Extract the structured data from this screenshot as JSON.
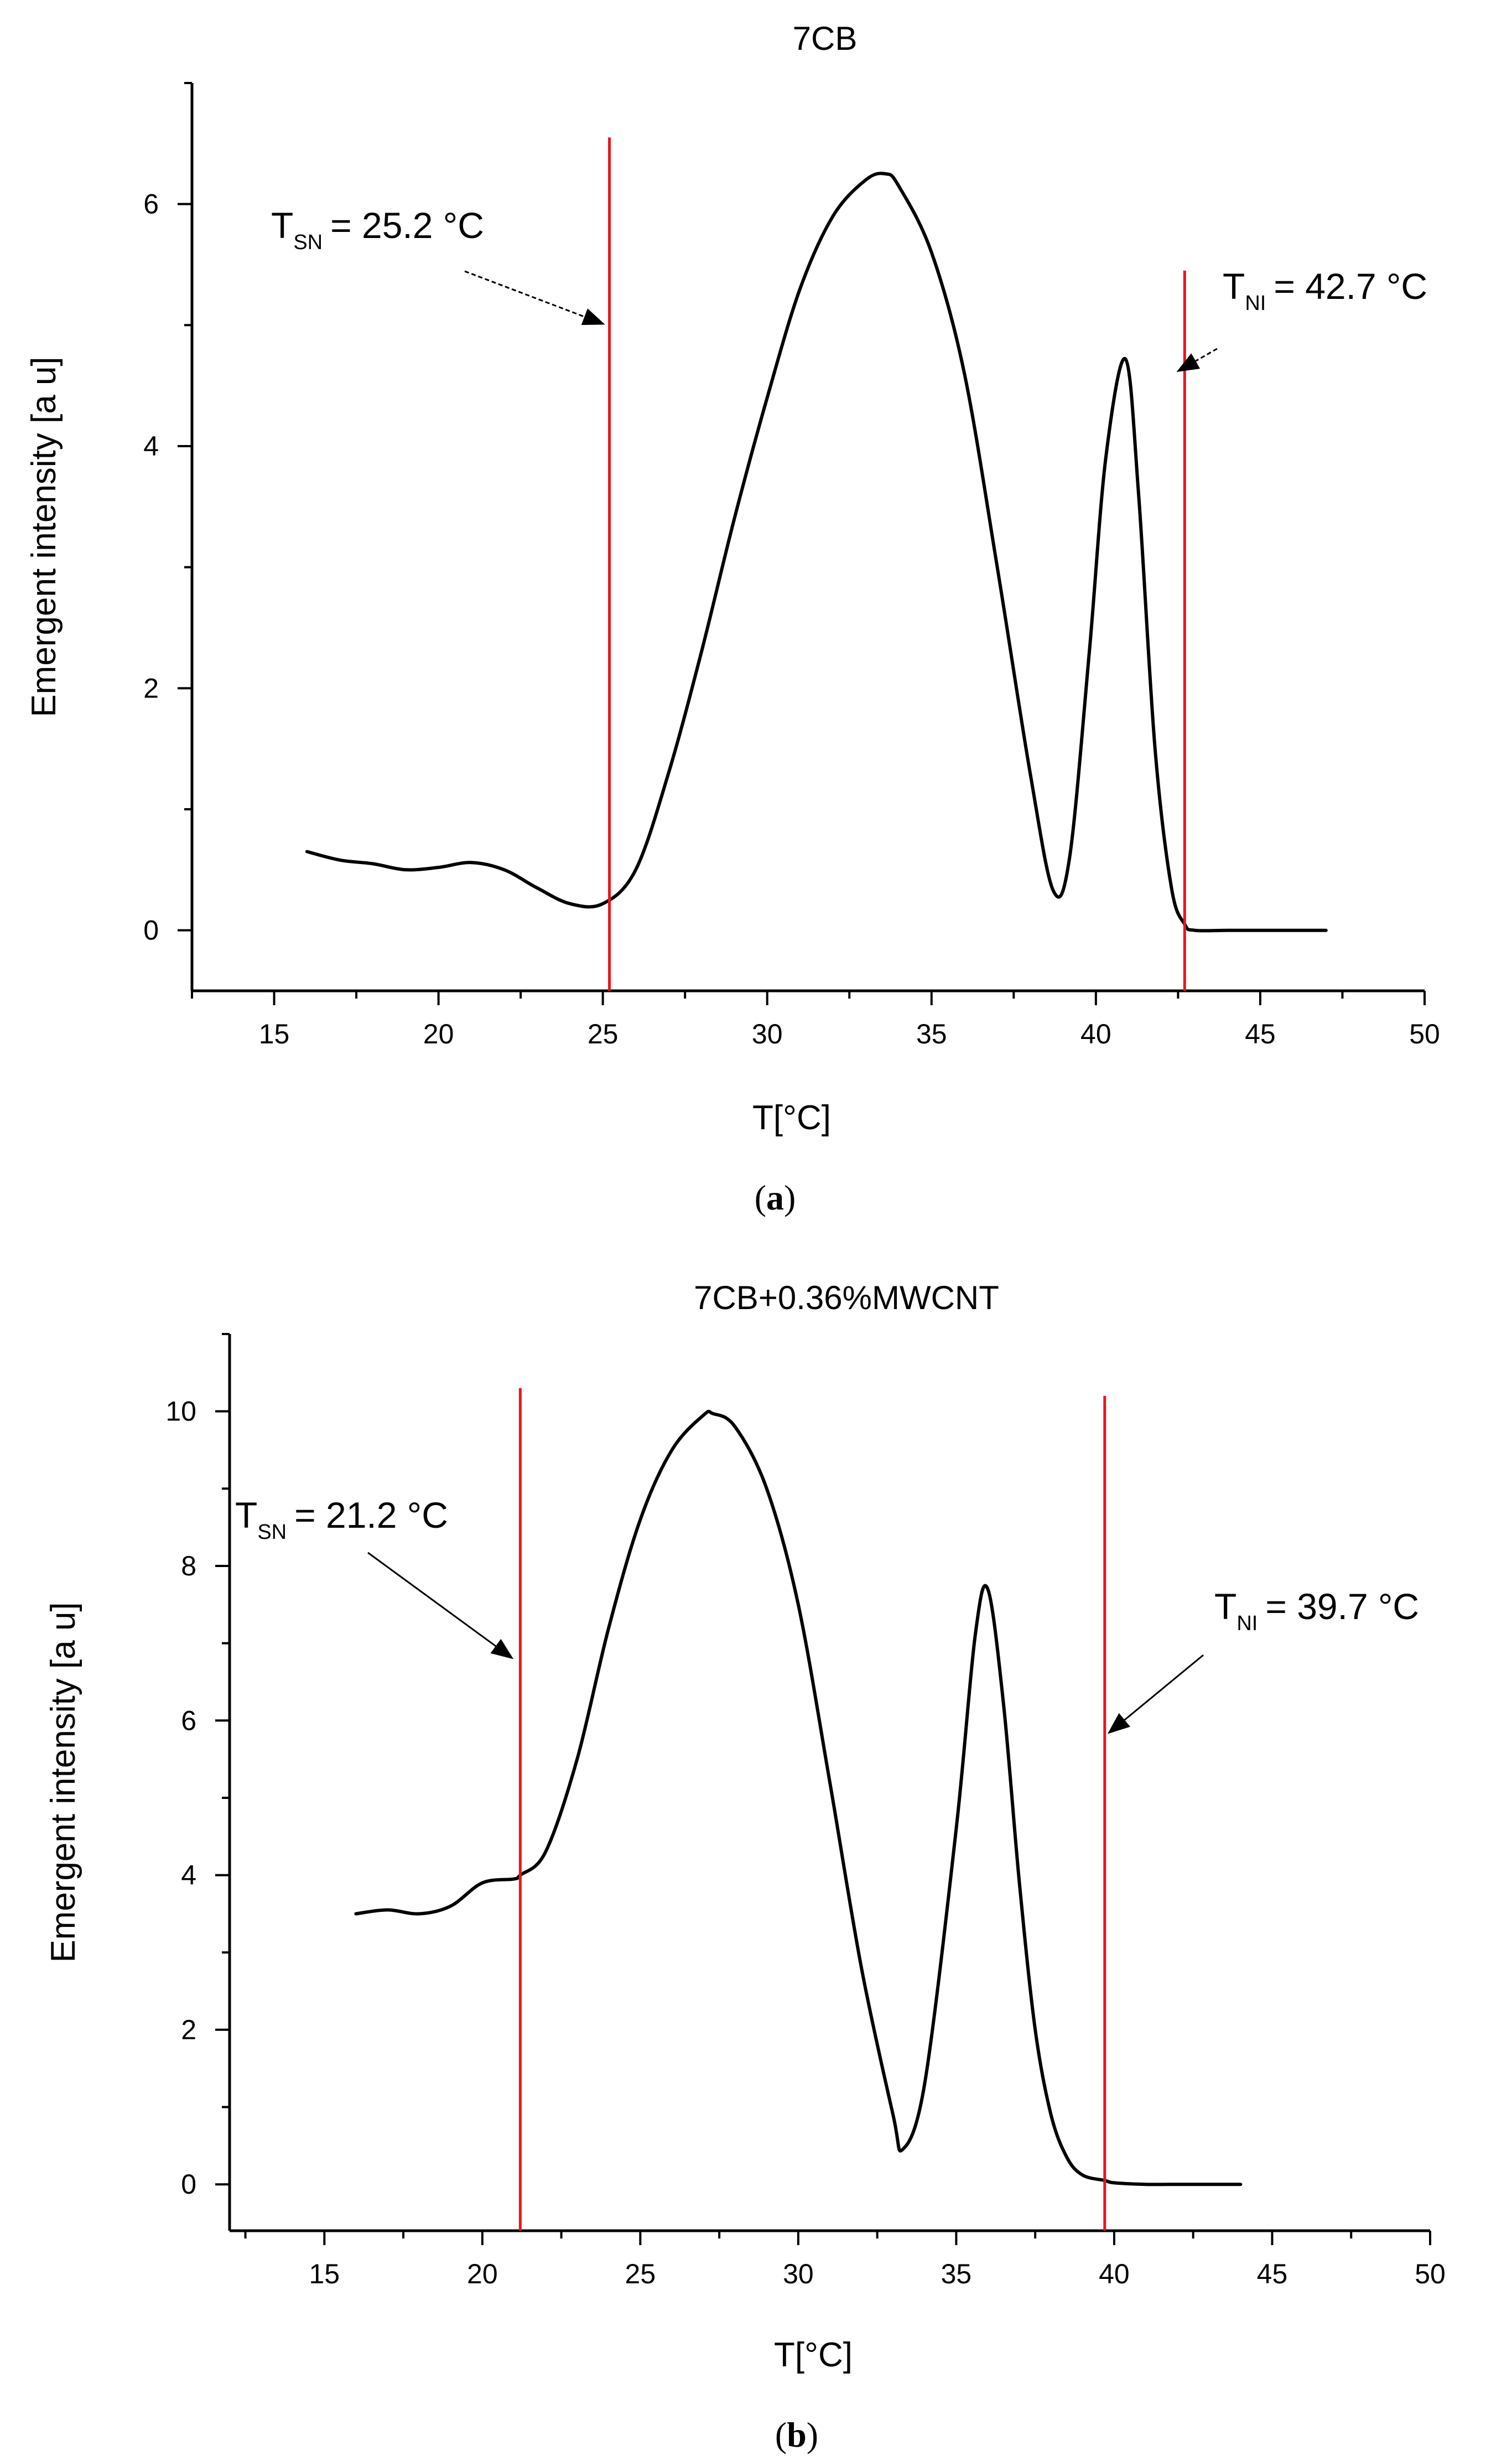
{
  "chart_data": [
    {
      "id": "a",
      "type": "line",
      "title": "7CB",
      "xlabel": "T[°C]",
      "ylabel": "Emergent intensity [a u]",
      "xlim": [
        12.5,
        50
      ],
      "ylim": [
        -0.5,
        7
      ],
      "xticks": [
        15,
        20,
        25,
        30,
        35,
        40,
        45,
        50
      ],
      "yticks": [
        0,
        2,
        4,
        6
      ],
      "caption": "(a)",
      "caption_letter": "a",
      "grid": false,
      "curve_color": "#000000",
      "line_color": "#e8161c",
      "series": [
        {
          "name": "7CB",
          "x": [
            16,
            17,
            18,
            19,
            20,
            21,
            22,
            23,
            24,
            25,
            26,
            27,
            28,
            29,
            30,
            31,
            32,
            33,
            33.6,
            34,
            35,
            36,
            37,
            38,
            38.7,
            39.2,
            39.8,
            40.3,
            40.9,
            41.3,
            41.8,
            42.3,
            42.7,
            43,
            44,
            45,
            46,
            47
          ],
          "y": [
            0.65,
            0.58,
            0.55,
            0.5,
            0.52,
            0.56,
            0.5,
            0.35,
            0.22,
            0.22,
            0.5,
            1.3,
            2.3,
            3.4,
            4.4,
            5.3,
            5.9,
            6.2,
            6.25,
            6.15,
            5.6,
            4.6,
            3.0,
            1.3,
            0.33,
            0.6,
            2.3,
            3.9,
            4.72,
            3.6,
            1.5,
            0.35,
            0.05,
            0.0,
            0.0,
            0.0,
            0.0,
            0.0
          ]
        }
      ],
      "vlines": [
        {
          "x": 25.2,
          "label": "T",
          "sub": "SN",
          "value": "= 25.2 °C"
        },
        {
          "x": 42.7,
          "label": "T",
          "sub": "NI",
          "value": "= 42.7 °C"
        }
      ]
    },
    {
      "id": "b",
      "type": "line",
      "title": "7CB+0.36%MWCNT",
      "xlabel": "T[°C]",
      "ylabel": "Emergent intensity [a u]",
      "xlim": [
        12,
        50
      ],
      "ylim": [
        -0.6,
        11
      ],
      "xticks": [
        15,
        20,
        25,
        30,
        35,
        40,
        45,
        50
      ],
      "yticks": [
        0,
        2,
        4,
        6,
        8,
        10
      ],
      "caption": "(b)",
      "caption_letter": "b",
      "grid": false,
      "curve_color": "#000000",
      "line_color": "#e8161c",
      "series": [
        {
          "name": "7CB+0.36%MWCNT",
          "x": [
            16,
            17,
            18,
            19,
            20,
            21,
            21.2,
            22,
            23,
            24,
            25,
            26,
            27,
            27.3,
            28,
            29,
            30,
            31,
            32,
            33,
            33.3,
            34,
            35,
            35.6,
            36,
            36.5,
            37,
            37.5,
            38,
            38.5,
            39,
            39.7,
            40,
            41,
            42,
            43,
            44
          ],
          "y": [
            3.5,
            3.55,
            3.5,
            3.6,
            3.9,
            3.95,
            4.0,
            4.3,
            5.5,
            7.2,
            8.6,
            9.5,
            9.95,
            9.97,
            9.8,
            9.0,
            7.5,
            5.2,
            2.8,
            0.9,
            0.45,
            1.3,
            4.6,
            7.1,
            7.7,
            6.2,
            3.9,
            2.0,
            0.9,
            0.35,
            0.12,
            0.05,
            0.02,
            0.0,
            0.0,
            0.0,
            0.0
          ]
        }
      ],
      "vlines": [
        {
          "x": 21.2,
          "label": "T",
          "sub": "SN",
          "value": "= 21.2 °C"
        },
        {
          "x": 39.7,
          "label": "T",
          "sub": "NI",
          "value": "= 39.7 °C"
        }
      ]
    }
  ]
}
